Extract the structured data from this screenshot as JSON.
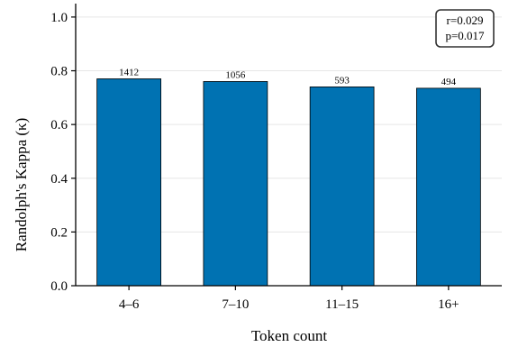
{
  "chart_data": {
    "type": "bar",
    "categories": [
      "4–6",
      "7–10",
      "11–15",
      "16+"
    ],
    "values": [
      0.77,
      0.76,
      0.74,
      0.735
    ],
    "bar_labels": [
      "1412",
      "1056",
      "593",
      "494"
    ],
    "xlabel": "Token count",
    "ylabel": "Randolph's Kappa (κ)",
    "ylim": [
      0,
      1.05
    ],
    "yticks": [
      0.0,
      0.2,
      0.4,
      0.6,
      0.8,
      1.0
    ],
    "ytick_labels": [
      "0.0",
      "0.2",
      "0.4",
      "0.6",
      "0.8",
      "1.0"
    ],
    "grid": "horizontal",
    "bar_color": "#0072b2",
    "annotation": {
      "lines": [
        "r=0.029",
        "p=0.017"
      ],
      "placement": "top-right"
    }
  }
}
